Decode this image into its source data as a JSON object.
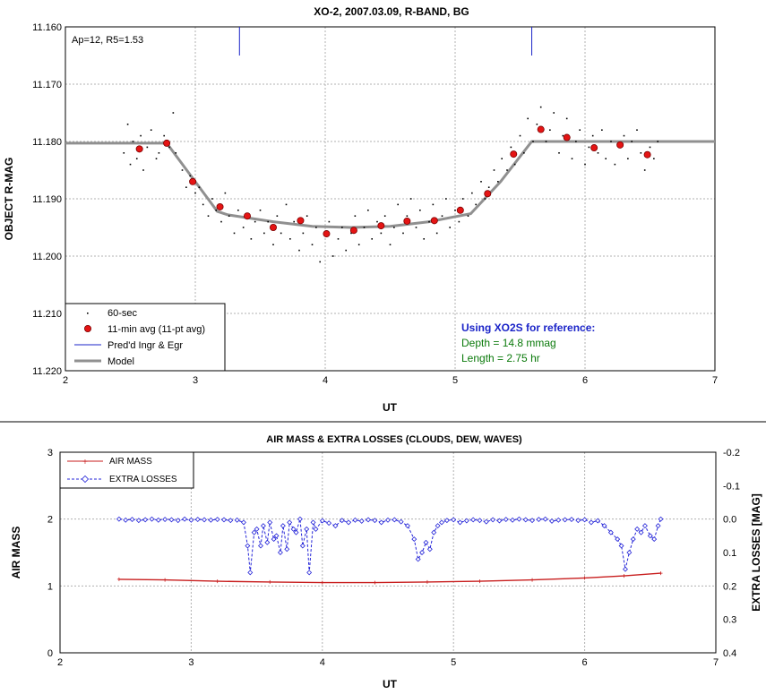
{
  "top": {
    "chart_data": {
      "type": "scatter",
      "title": "XO-2, 2007.03.09, R-BAND, BG",
      "xlabel": "UT",
      "ylabel": "OBJECT R-MAG",
      "xlim": [
        2,
        7
      ],
      "ylim": [
        11.16,
        11.22
      ],
      "y_reversed": true,
      "grid": true,
      "x_ticks": [
        "2",
        "3",
        "4",
        "5",
        "6",
        "7"
      ],
      "y_ticks": [
        "11.160",
        "11.170",
        "11.180",
        "11.190",
        "11.200",
        "11.210",
        "11.220"
      ],
      "legend_position": "bottom-left",
      "annotation_corner": "Ap=12, R5=1.53",
      "annotation_title": "Using XO2S for reference:",
      "annotation_depth": "Depth = 14.8 mmag",
      "annotation_length": "Length = 2.75 hr",
      "series": [
        {
          "name": "60-sec",
          "color": "#000000",
          "style": "dots",
          "x": [
            2.45,
            2.48,
            2.5,
            2.52,
            2.55,
            2.58,
            2.6,
            2.63,
            2.66,
            2.7,
            2.72,
            2.76,
            2.8,
            2.83,
            2.85,
            2.9,
            2.93,
            2.96,
            3.0,
            3.03,
            3.06,
            3.1,
            3.13,
            3.16,
            3.2,
            3.23,
            3.26,
            3.3,
            3.33,
            3.37,
            3.4,
            3.43,
            3.46,
            3.5,
            3.53,
            3.56,
            3.6,
            3.63,
            3.66,
            3.7,
            3.73,
            3.76,
            3.8,
            3.83,
            3.86,
            3.9,
            3.93,
            3.96,
            4.0,
            4.03,
            4.06,
            4.1,
            4.13,
            4.16,
            4.2,
            4.23,
            4.26,
            4.3,
            4.33,
            4.36,
            4.4,
            4.43,
            4.46,
            4.5,
            4.53,
            4.56,
            4.6,
            4.63,
            4.66,
            4.7,
            4.73,
            4.76,
            4.8,
            4.83,
            4.86,
            4.9,
            4.93,
            4.96,
            5.0,
            5.03,
            5.06,
            5.1,
            5.13,
            5.16,
            5.2,
            5.23,
            5.26,
            5.3,
            5.33,
            5.36,
            5.4,
            5.43,
            5.46,
            5.5,
            5.53,
            5.56,
            5.6,
            5.63,
            5.66,
            5.7,
            5.73,
            5.76,
            5.8,
            5.83,
            5.86,
            5.9,
            5.93,
            5.96,
            6.0,
            6.03,
            6.06,
            6.1,
            6.13,
            6.16,
            6.2,
            6.23,
            6.26,
            6.3,
            6.33,
            6.36,
            6.4,
            6.43,
            6.46,
            6.5,
            6.53,
            6.56
          ],
          "y": [
            11.182,
            11.177,
            11.184,
            11.18,
            11.183,
            11.179,
            11.185,
            11.181,
            11.178,
            11.183,
            11.182,
            11.179,
            11.181,
            11.175,
            11.182,
            11.185,
            11.188,
            11.186,
            11.189,
            11.188,
            11.191,
            11.193,
            11.19,
            11.192,
            11.194,
            11.189,
            11.193,
            11.196,
            11.192,
            11.195,
            11.193,
            11.197,
            11.194,
            11.192,
            11.196,
            11.194,
            11.198,
            11.193,
            11.196,
            11.191,
            11.197,
            11.194,
            11.199,
            11.196,
            11.193,
            11.198,
            11.195,
            11.201,
            11.196,
            11.194,
            11.2,
            11.197,
            11.195,
            11.199,
            11.196,
            11.193,
            11.198,
            11.195,
            11.192,
            11.197,
            11.194,
            11.196,
            11.193,
            11.198,
            11.195,
            11.191,
            11.196,
            11.193,
            11.19,
            11.195,
            11.192,
            11.197,
            11.194,
            11.191,
            11.196,
            11.193,
            11.19,
            11.195,
            11.192,
            11.194,
            11.19,
            11.193,
            11.189,
            11.191,
            11.187,
            11.19,
            11.188,
            11.185,
            11.187,
            11.183,
            11.185,
            11.181,
            11.184,
            11.179,
            11.182,
            11.176,
            11.18,
            11.177,
            11.174,
            11.18,
            11.178,
            11.175,
            11.182,
            11.179,
            11.176,
            11.183,
            11.18,
            11.178,
            11.184,
            11.181,
            11.179,
            11.182,
            11.178,
            11.183,
            11.18,
            11.184,
            11.181,
            11.179,
            11.183,
            11.18,
            11.178,
            11.182,
            11.185,
            11.181,
            11.183,
            11.18
          ]
        },
        {
          "name": "11-min avg (11-pt avg)",
          "color": "#e51414",
          "style": "markers",
          "x": [
            2.57,
            2.78,
            2.98,
            3.19,
            3.4,
            3.6,
            3.81,
            4.01,
            4.22,
            4.43,
            4.63,
            4.84,
            5.04,
            5.25,
            5.45,
            5.66,
            5.86,
            6.07,
            6.27,
            6.48
          ],
          "y": [
            11.1813,
            11.1803,
            11.187,
            11.1914,
            11.193,
            11.195,
            11.1938,
            11.1961,
            11.1955,
            11.1947,
            11.1939,
            11.1938,
            11.192,
            11.1891,
            11.1822,
            11.1779,
            11.1793,
            11.1811,
            11.1806,
            11.1823
          ]
        },
        {
          "name": "Pred'd Ingr & Egr",
          "color": "#1b24c8",
          "style": "ticks",
          "x": [
            3.34,
            5.59
          ]
        },
        {
          "name": "Model",
          "color": "#909090",
          "style": "line",
          "x": [
            2.0,
            2.78,
            3.17,
            3.25,
            3.6,
            3.9,
            4.2,
            4.5,
            4.8,
            5.12,
            5.35,
            5.59,
            7.0
          ],
          "y": [
            11.1803,
            11.1803,
            11.1922,
            11.1928,
            11.194,
            11.1948,
            11.195,
            11.1948,
            11.194,
            11.1926,
            11.187,
            11.18,
            11.18
          ]
        }
      ]
    }
  },
  "bottom": {
    "chart_data": {
      "type": "line",
      "title": "AIR MASS & EXTRA LOSSES (CLOUDS, DEW, WAVES)",
      "xlabel": "UT",
      "ylabel": "AIR MASS",
      "y2label": "EXTRA LOSSES [MAG]",
      "xlim": [
        2,
        7
      ],
      "ylim": [
        0,
        3
      ],
      "y2lim": [
        0.4,
        -0.2
      ],
      "grid": true,
      "x_ticks": [
        "2",
        "3",
        "4",
        "5",
        "6",
        "7"
      ],
      "y_ticks": [
        "0",
        "1",
        "2",
        "3"
      ],
      "y2_ticks": [
        "-0.2",
        "-0.1",
        "0.0",
        "0.1",
        "0.2",
        "0.3",
        "0.4"
      ],
      "legend_position": "top-left",
      "series": [
        {
          "name": "AIR MASS",
          "color": "#c81e1e",
          "axis": "left",
          "x": [
            2.45,
            2.8,
            3.2,
            3.6,
            4.0,
            4.4,
            4.8,
            5.2,
            5.6,
            6.0,
            6.3,
            6.58
          ],
          "y": [
            1.1,
            1.09,
            1.07,
            1.06,
            1.05,
            1.05,
            1.06,
            1.07,
            1.09,
            1.12,
            1.15,
            1.19
          ]
        },
        {
          "name": "EXTRA LOSSES",
          "color": "#2323d8",
          "axis": "right",
          "x": [
            2.45,
            2.5,
            2.55,
            2.6,
            2.65,
            2.7,
            2.75,
            2.8,
            2.85,
            2.9,
            2.95,
            3.0,
            3.05,
            3.1,
            3.15,
            3.2,
            3.25,
            3.3,
            3.35,
            3.4,
            3.43,
            3.45,
            3.48,
            3.5,
            3.53,
            3.55,
            3.58,
            3.6,
            3.63,
            3.65,
            3.68,
            3.7,
            3.73,
            3.75,
            3.78,
            3.8,
            3.83,
            3.85,
            3.88,
            3.9,
            3.93,
            3.95,
            4.0,
            4.05,
            4.1,
            4.15,
            4.2,
            4.25,
            4.3,
            4.35,
            4.4,
            4.45,
            4.5,
            4.55,
            4.6,
            4.65,
            4.7,
            4.73,
            4.76,
            4.79,
            4.82,
            4.85,
            4.88,
            4.91,
            4.95,
            5.0,
            5.05,
            5.1,
            5.15,
            5.2,
            5.25,
            5.3,
            5.35,
            5.4,
            5.45,
            5.5,
            5.55,
            5.6,
            5.65,
            5.7,
            5.75,
            5.8,
            5.85,
            5.9,
            5.95,
            6.0,
            6.05,
            6.1,
            6.15,
            6.2,
            6.25,
            6.28,
            6.31,
            6.34,
            6.37,
            6.4,
            6.43,
            6.46,
            6.5,
            6.53,
            6.56,
            6.58
          ],
          "y": [
            0.0,
            0.003,
            0.001,
            0.004,
            0.002,
            0.0,
            0.003,
            0.001,
            0.002,
            0.004,
            0.0,
            0.003,
            0.001,
            0.002,
            0.003,
            0.001,
            0.002,
            0.004,
            0.003,
            0.01,
            0.08,
            0.16,
            0.04,
            0.03,
            0.08,
            0.02,
            0.07,
            0.01,
            0.06,
            0.05,
            0.1,
            0.02,
            0.09,
            0.01,
            0.03,
            0.04,
            0.0,
            0.08,
            0.03,
            0.16,
            0.01,
            0.03,
            0.005,
            0.012,
            0.02,
            0.004,
            0.01,
            0.003,
            0.006,
            0.002,
            0.004,
            0.01,
            0.003,
            0.002,
            0.008,
            0.02,
            0.06,
            0.12,
            0.1,
            0.07,
            0.09,
            0.04,
            0.02,
            0.01,
            0.004,
            0.002,
            0.01,
            0.005,
            0.002,
            0.004,
            0.008,
            0.002,
            0.005,
            0.001,
            0.003,
            0.0,
            0.002,
            0.004,
            0.001,
            0.0,
            0.006,
            0.003,
            0.002,
            0.001,
            0.004,
            0.002,
            0.01,
            0.005,
            0.02,
            0.04,
            0.06,
            0.08,
            0.15,
            0.1,
            0.06,
            0.03,
            0.04,
            0.02,
            0.05,
            0.06,
            0.02,
            0.0
          ]
        }
      ]
    }
  }
}
